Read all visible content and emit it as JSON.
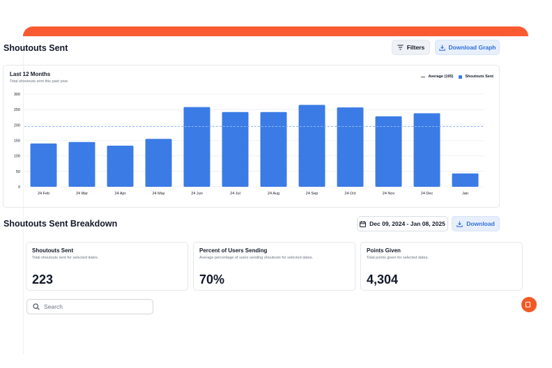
{
  "header": {
    "title": "Shoutouts Sent",
    "filters_label": "Filters",
    "download_graph_label": "Download Graph"
  },
  "chart_card": {
    "title": "Last 12 Months",
    "subtitle": "Total shoutouts sent this past year."
  },
  "legend": {
    "average_label": "Average (195)",
    "series_label": "Shoutouts Sent"
  },
  "chart_data": {
    "type": "bar",
    "title": "Last 12 Months",
    "categories": [
      "24 Feb",
      "24 Mar",
      "24 Apr",
      "24 May",
      "24 Jun",
      "24 Jul",
      "24 Aug",
      "24 Sep",
      "24 Oct",
      "24 Nov",
      "24 Dec",
      "Jan"
    ],
    "series": [
      {
        "name": "Shoutouts Sent",
        "values": [
          140,
          145,
          133,
          155,
          258,
          242,
          242,
          265,
          257,
          228,
          238,
          43
        ]
      }
    ],
    "average": 195,
    "ylim": [
      0,
      300
    ],
    "yticks": [
      0,
      50,
      100,
      150,
      200,
      250,
      300
    ],
    "grid": true,
    "legend_position": "top-right",
    "bar_color": "#3b7be6",
    "average_line_color": "#8fb4ee"
  },
  "breakdown": {
    "title": "Shoutouts Sent Breakdown",
    "date_range": "Dec 09, 2024 - Jan 08, 2025",
    "download_label": "Download"
  },
  "stats": [
    {
      "label": "Shoutouts Sent",
      "desc": "Total shoutouts sent for selected dates.",
      "value": "223"
    },
    {
      "label": "Percent of Users Sending",
      "desc": "Average percentage of users sending shoutouts for selected dates.",
      "value": "70%"
    },
    {
      "label": "Points Given",
      "desc": "Total points given for selected dates.",
      "value": "4,304"
    }
  ],
  "search": {
    "placeholder": "Search"
  },
  "colors": {
    "brand": "#fa5a32",
    "accent": "#3b7be6",
    "fab": "#f05a26"
  }
}
